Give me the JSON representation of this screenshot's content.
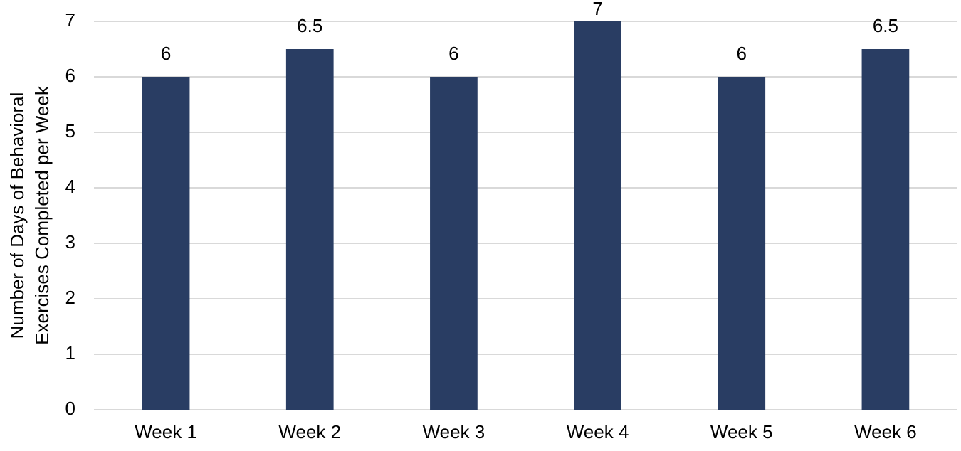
{
  "chart_data": {
    "type": "bar",
    "ylabel": [
      "Number of Days of Behavioral",
      "Exercises Completed per Week"
    ],
    "categories": [
      "Week 1",
      "Week 2",
      "Week 3",
      "Week 4",
      "Week 5",
      "Week 6"
    ],
    "values": [
      6,
      6.5,
      6,
      7,
      6,
      6.5
    ],
    "color": "#293d63",
    "ylim": [
      0,
      7
    ],
    "yticks": [
      0,
      1,
      2,
      3,
      4,
      5,
      6,
      7
    ],
    "grid": true
  }
}
